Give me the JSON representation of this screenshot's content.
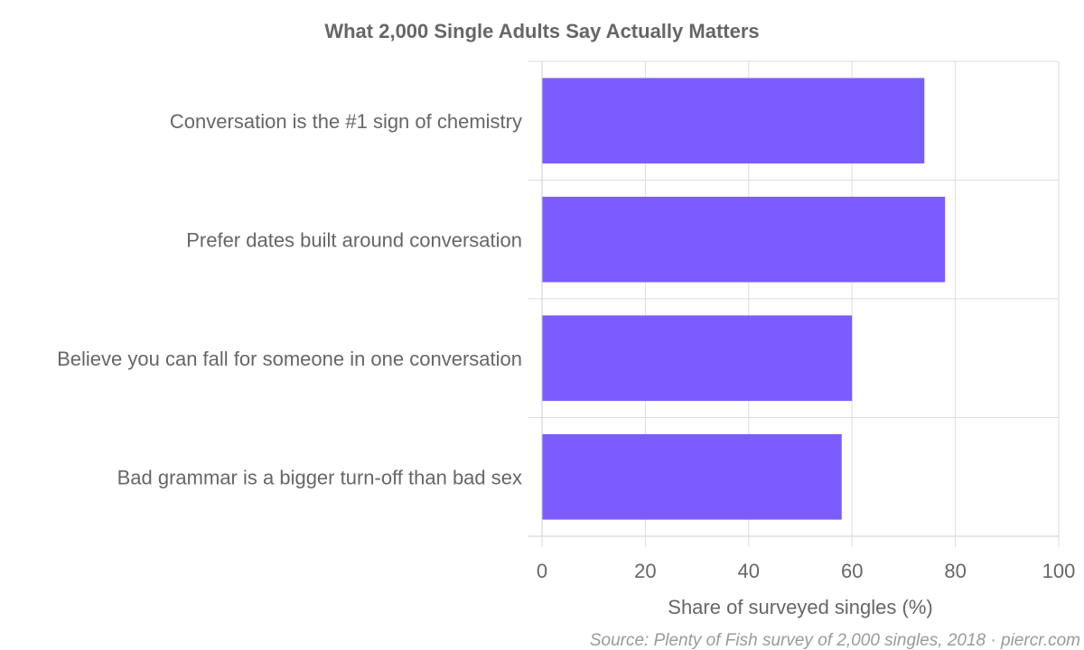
{
  "chart_data": {
    "type": "bar",
    "orientation": "horizontal",
    "title": "What 2,000 Single Adults Say Actually Matters",
    "categories": [
      "Conversation is the #1 sign of chemistry",
      "Prefer dates built around conversation",
      "Believe you can fall for someone in one conversation",
      "Bad grammar is a bigger turn-off than bad sex"
    ],
    "values": [
      74,
      78,
      60,
      58
    ],
    "xlabel": "Share of surveyed singles (%)",
    "ylabel": "",
    "xlim": [
      0,
      100
    ],
    "ticks": [
      "0",
      "20",
      "40",
      "60",
      "80",
      "100"
    ],
    "grid": true,
    "bar_color": "#7b5cff",
    "source": "Source: Plenty of Fish survey of 2,000 singles, 2018 · piercr.com"
  }
}
